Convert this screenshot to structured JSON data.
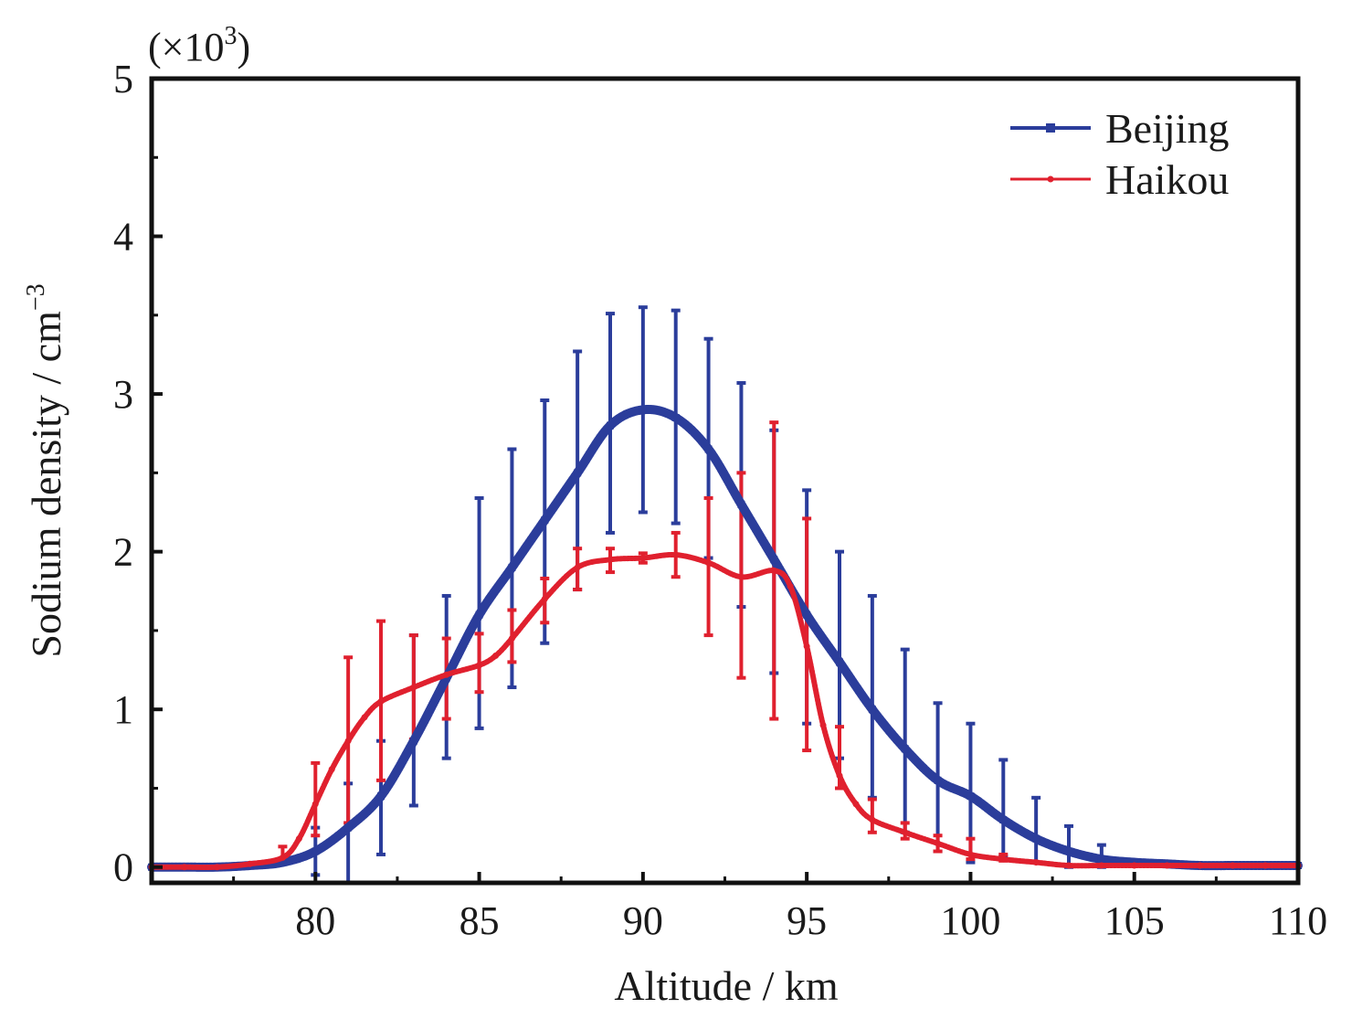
{
  "chart_data": {
    "type": "line",
    "title": "",
    "xlabel": "Altitude / km",
    "ylabel": {
      "text": "Sodium density / cm",
      "unit_exponent": "−3"
    },
    "y_multiplier": {
      "prefix": "(×10",
      "exponent": "3",
      "suffix": ")"
    },
    "xlim": [
      75,
      110
    ],
    "ylim": [
      -0.1,
      5
    ],
    "x_ticks": [
      80,
      85,
      90,
      95,
      100,
      105,
      110
    ],
    "y_ticks": [
      0,
      1,
      2,
      3,
      4,
      5
    ],
    "grid": false,
    "legend_position": "top-right",
    "series": [
      {
        "name": "Beijing",
        "color": "#2b3d9b",
        "marker": "square",
        "x": [
          75,
          76,
          77,
          78,
          79,
          80,
          81,
          82,
          83,
          84,
          85,
          86,
          87,
          88,
          89,
          90,
          91,
          92,
          93,
          94,
          95,
          96,
          97,
          98,
          99,
          100,
          101,
          102,
          103,
          104,
          105,
          106,
          107,
          108,
          109,
          110
        ],
        "y": [
          0.0,
          0.0,
          0.0,
          0.01,
          0.03,
          0.1,
          0.25,
          0.45,
          0.8,
          1.2,
          1.6,
          1.9,
          2.2,
          2.5,
          2.8,
          2.9,
          2.85,
          2.65,
          2.3,
          1.95,
          1.6,
          1.3,
          1.0,
          0.75,
          0.55,
          0.45,
          0.3,
          0.18,
          0.1,
          0.05,
          0.03,
          0.02,
          0.01,
          0.01,
          0.01,
          0.01
        ],
        "error_x": [
          79,
          80,
          81,
          82,
          83,
          84,
          85,
          86,
          87,
          88,
          89,
          90,
          91,
          92,
          93,
          94,
          95,
          96,
          97,
          98,
          99,
          100,
          101,
          102,
          103,
          104
        ],
        "error_y": [
          0.03,
          0.1,
          0.25,
          0.45,
          0.8,
          1.2,
          1.6,
          1.9,
          2.2,
          2.5,
          2.8,
          2.9,
          2.85,
          2.65,
          2.35,
          2.0,
          1.65,
          1.35,
          1.08,
          0.8,
          0.58,
          0.46,
          0.35,
          0.2,
          0.12,
          0.06
        ],
        "error_minus": [
          0.0,
          0.15,
          0.35,
          0.37,
          0.41,
          0.51,
          0.72,
          0.76,
          0.78,
          0.74,
          0.68,
          0.65,
          0.67,
          0.69,
          0.7,
          0.77,
          0.74,
          0.66,
          0.64,
          0.58,
          0.48,
          0.43,
          0.28,
          0.17,
          0.12,
          0.06
        ],
        "error_plus": [
          0.0,
          0.15,
          0.28,
          0.35,
          0.67,
          0.52,
          0.74,
          0.75,
          0.76,
          0.77,
          0.71,
          0.65,
          0.68,
          0.7,
          0.72,
          0.77,
          0.74,
          0.65,
          0.64,
          0.58,
          0.46,
          0.45,
          0.33,
          0.24,
          0.14,
          0.08
        ]
      },
      {
        "name": "Haikou",
        "color": "#e0202e",
        "marker": "dot",
        "x": [
          75,
          76,
          77,
          78,
          79,
          79.5,
          80,
          80.5,
          81,
          81.5,
          82,
          83,
          84,
          85,
          85.5,
          86,
          87,
          88,
          89,
          90,
          91,
          92,
          93,
          94,
          94.5,
          95,
          95.5,
          96,
          96.5,
          97,
          98,
          99,
          100,
          101,
          102,
          103,
          104,
          105,
          106,
          107,
          108,
          109,
          110
        ],
        "y": [
          0.0,
          0.0,
          0.0,
          0.02,
          0.06,
          0.18,
          0.4,
          0.62,
          0.8,
          0.95,
          1.05,
          1.14,
          1.22,
          1.28,
          1.34,
          1.45,
          1.7,
          1.9,
          1.95,
          1.96,
          1.98,
          1.93,
          1.84,
          1.88,
          1.78,
          1.4,
          0.9,
          0.58,
          0.4,
          0.3,
          0.22,
          0.15,
          0.08,
          0.05,
          0.03,
          0.01,
          0.01,
          0.01,
          0.01,
          0.01,
          0.01,
          0.01,
          0.01
        ],
        "error_x": [
          79,
          80,
          81,
          82,
          83,
          84,
          85,
          86,
          87,
          88,
          89,
          90,
          91,
          92,
          93,
          94,
          95,
          96,
          97,
          98,
          99,
          100,
          101,
          102
        ],
        "error_y": [
          0.08,
          0.42,
          0.8,
          1.05,
          1.14,
          1.22,
          1.28,
          1.45,
          1.7,
          1.88,
          1.94,
          1.96,
          1.97,
          1.9,
          1.84,
          1.88,
          1.47,
          0.69,
          0.32,
          0.23,
          0.15,
          0.1,
          0.06,
          0.03
        ],
        "error_minus": [
          0.05,
          0.22,
          0.52,
          0.5,
          0.33,
          0.28,
          0.17,
          0.15,
          0.15,
          0.12,
          0.07,
          0.03,
          0.13,
          0.43,
          0.64,
          0.94,
          0.73,
          0.19,
          0.1,
          0.05,
          0.05,
          0.05,
          0.02,
          0.0
        ],
        "error_plus": [
          0.05,
          0.24,
          0.53,
          0.51,
          0.33,
          0.23,
          0.2,
          0.18,
          0.13,
          0.14,
          0.08,
          0.03,
          0.15,
          0.44,
          0.66,
          0.94,
          0.74,
          0.2,
          0.11,
          0.05,
          0.05,
          0.08,
          0.02,
          0.0
        ]
      }
    ]
  }
}
